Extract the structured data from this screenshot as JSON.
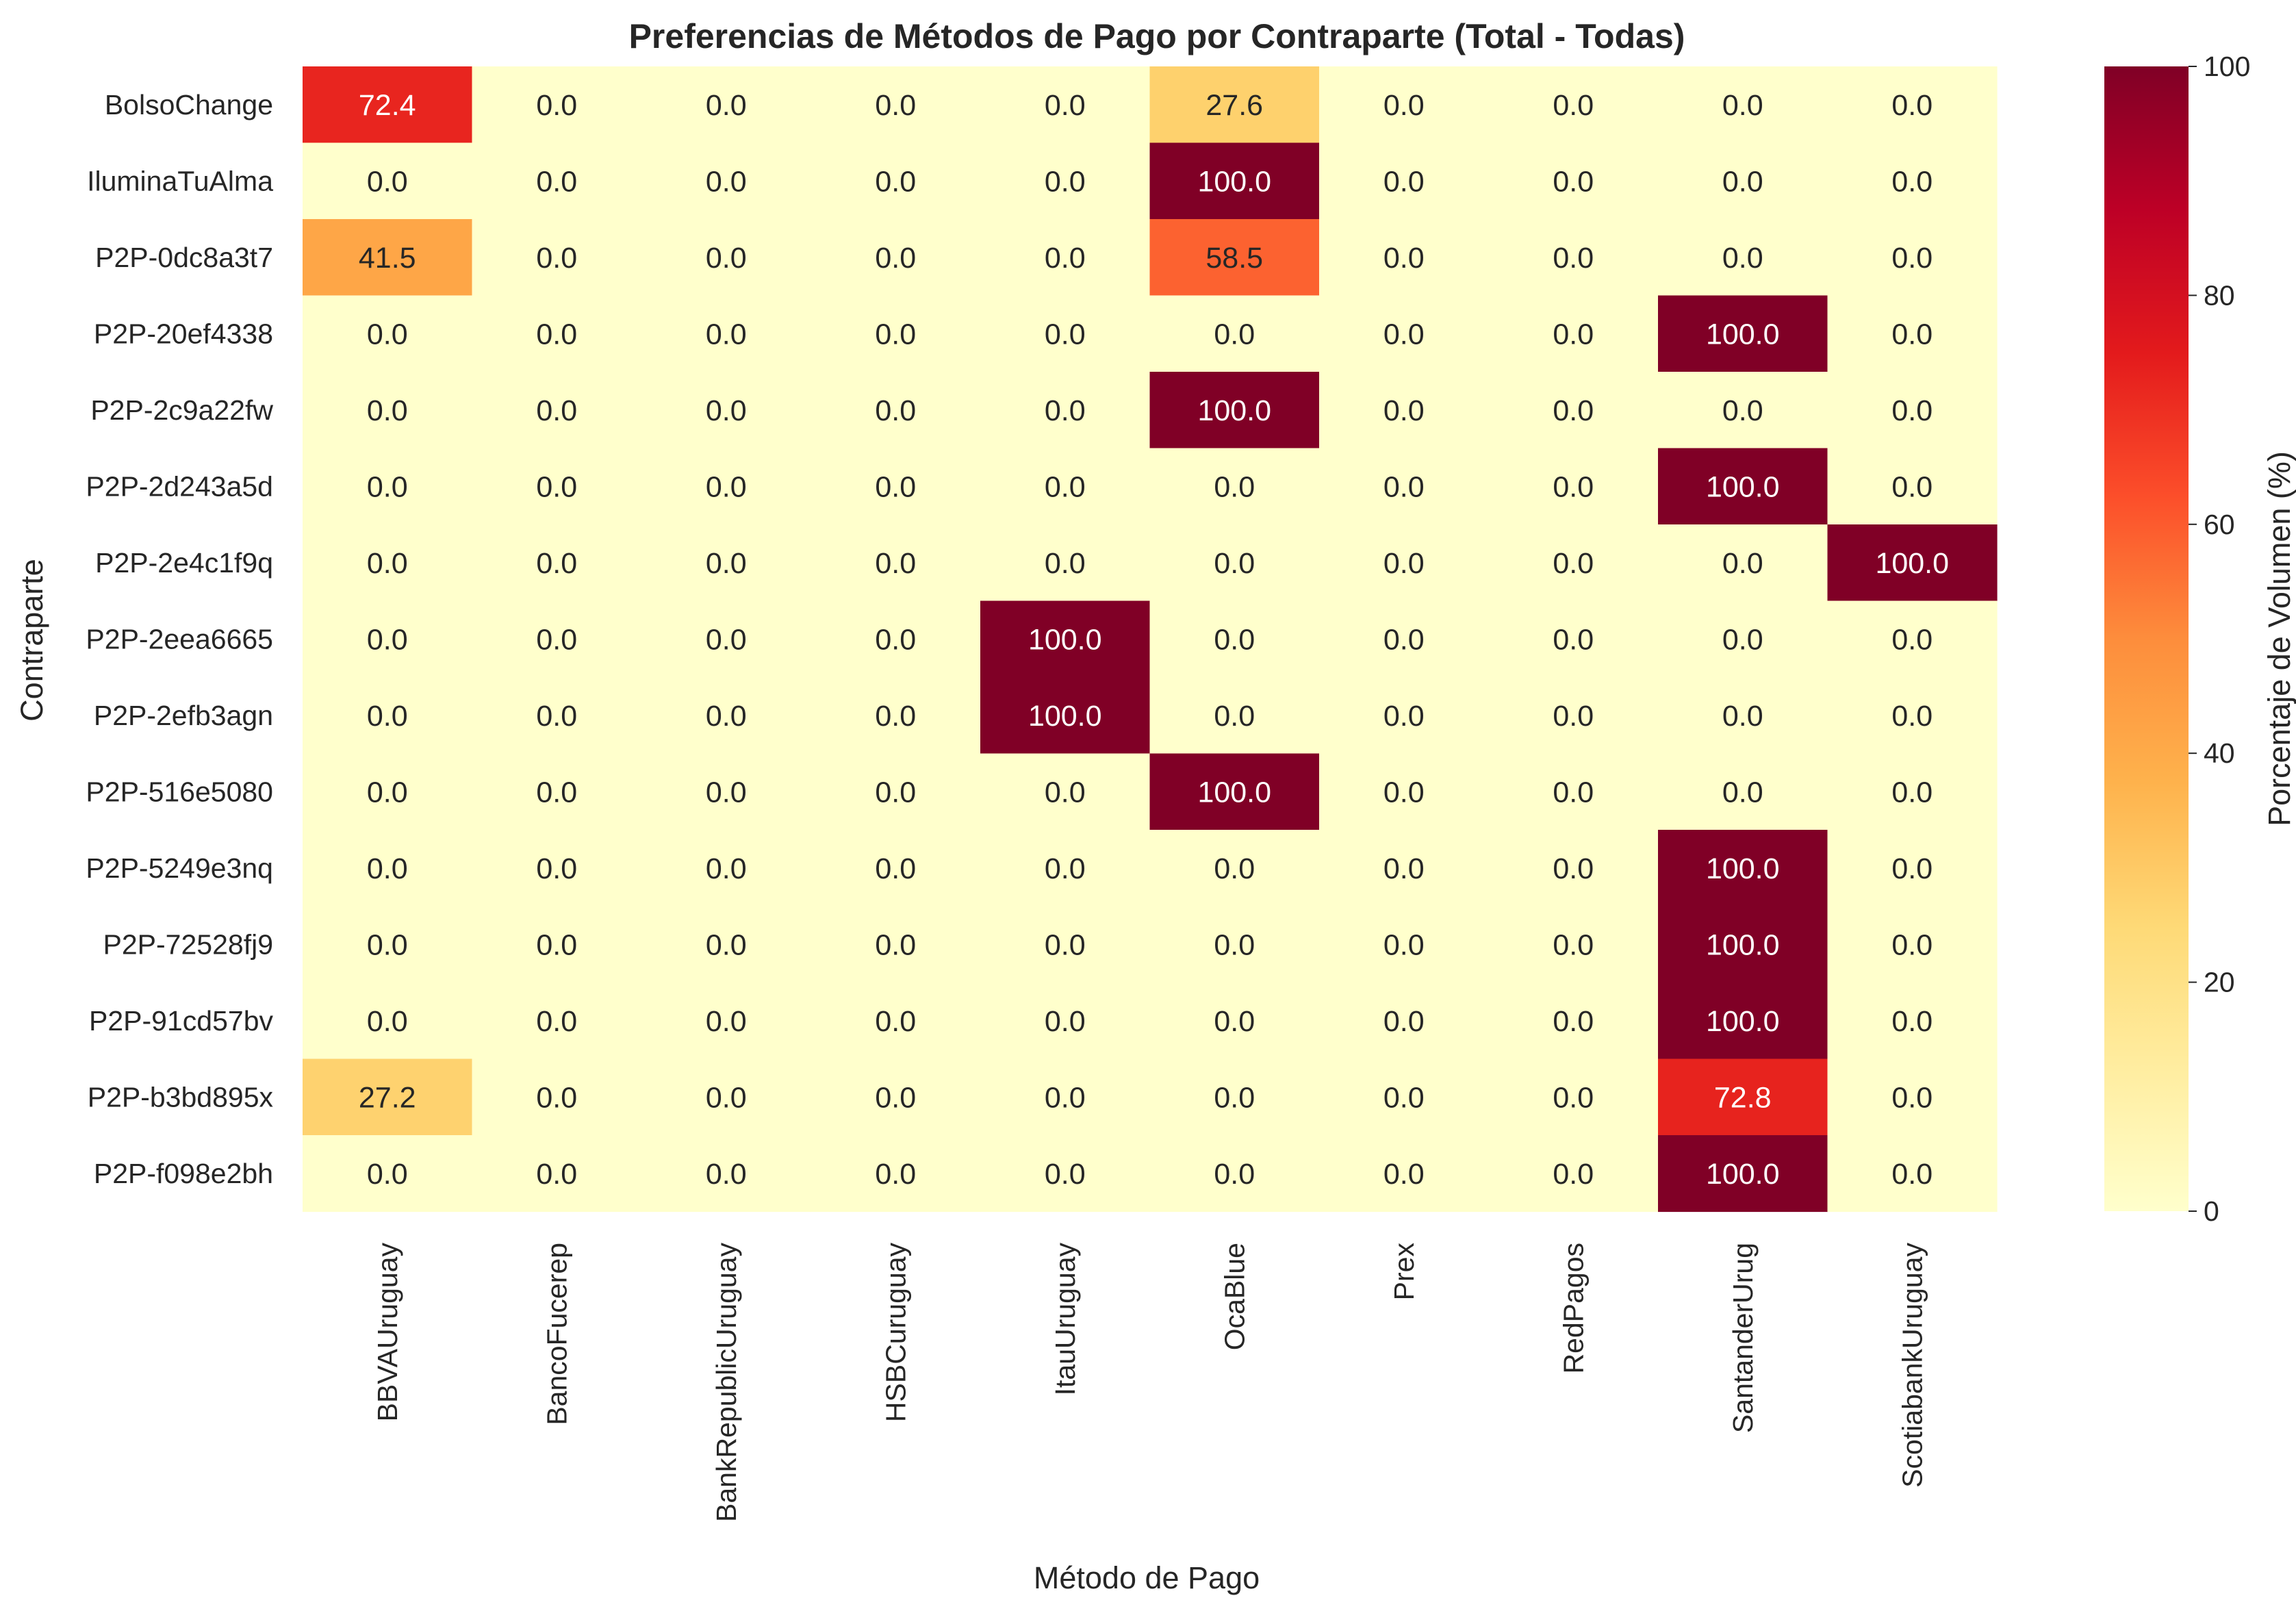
{
  "chart_data": {
    "type": "heatmap",
    "title": "Preferencias de Métodos de Pago por Contraparte (Total - Todas)",
    "xlabel": "Método de Pago",
    "ylabel": "Contraparte",
    "colorbar_label": "Porcentaje de Volumen (%)",
    "colormap": "YlOrRd",
    "vmin": 0,
    "vmax": 100,
    "colorbar_ticks": [
      "0",
      "20",
      "40",
      "60",
      "80",
      "100"
    ],
    "x_categories": [
      "BBVAUruguay",
      "BancoFucerep",
      "BankRepublicUruguay",
      "HSBCuruguay",
      "ItauUruguay",
      "OcaBlue",
      "Prex",
      "RedPagos",
      "SantanderUrug",
      "ScotiabankUruguay"
    ],
    "y_categories": [
      "BolsoChange",
      "IluminaTuAlma",
      "P2P-0dc8a3t7",
      "P2P-20ef4338",
      "P2P-2c9a22fw",
      "P2P-2d243a5d",
      "P2P-2e4c1f9q",
      "P2P-2eea6665",
      "P2P-2efb3agn",
      "P2P-516e5080",
      "P2P-5249e3nq",
      "P2P-72528fj9",
      "P2P-91cd57bv",
      "P2P-b3bd895x",
      "P2P-f098e2bh"
    ],
    "values": [
      [
        72.4,
        0,
        0,
        0,
        0,
        27.6,
        0,
        0,
        0,
        0
      ],
      [
        0,
        0,
        0,
        0,
        0,
        100,
        0,
        0,
        0,
        0
      ],
      [
        41.5,
        0,
        0,
        0,
        0,
        58.5,
        0,
        0,
        0,
        0
      ],
      [
        0,
        0,
        0,
        0,
        0,
        0,
        0,
        0,
        100,
        0
      ],
      [
        0,
        0,
        0,
        0,
        0,
        100,
        0,
        0,
        0,
        0
      ],
      [
        0,
        0,
        0,
        0,
        0,
        0,
        0,
        0,
        100,
        0
      ],
      [
        0,
        0,
        0,
        0,
        0,
        0,
        0,
        0,
        0,
        100
      ],
      [
        0,
        0,
        0,
        0,
        100,
        0,
        0,
        0,
        0,
        0
      ],
      [
        0,
        0,
        0,
        0,
        100,
        0,
        0,
        0,
        0,
        0
      ],
      [
        0,
        0,
        0,
        0,
        0,
        100,
        0,
        0,
        0,
        0
      ],
      [
        0,
        0,
        0,
        0,
        0,
        0,
        0,
        0,
        100,
        0
      ],
      [
        0,
        0,
        0,
        0,
        0,
        0,
        0,
        0,
        100,
        0
      ],
      [
        0,
        0,
        0,
        0,
        0,
        0,
        0,
        0,
        100,
        0
      ],
      [
        27.2,
        0,
        0,
        0,
        0,
        0,
        0,
        0,
        72.8,
        0
      ],
      [
        0,
        0,
        0,
        0,
        0,
        0,
        0,
        0,
        100,
        0
      ]
    ],
    "value_format": "0.0"
  }
}
